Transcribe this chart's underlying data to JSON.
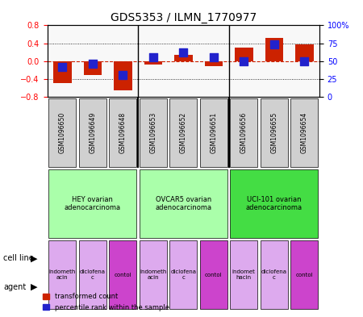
{
  "title": "GDS5353 / ILMN_1770977",
  "samples": [
    "GSM1096650",
    "GSM1096649",
    "GSM1096648",
    "GSM1096653",
    "GSM1096652",
    "GSM1096651",
    "GSM1096656",
    "GSM1096655",
    "GSM1096654"
  ],
  "transformed_counts": [
    -0.49,
    -0.32,
    -0.65,
    -0.08,
    0.13,
    -0.12,
    0.31,
    0.51,
    0.37
  ],
  "percentile_ranks": [
    42,
    46,
    30,
    55,
    62,
    55,
    50,
    73,
    50
  ],
  "ylim_left": [
    -0.8,
    0.8
  ],
  "ylim_right": [
    0,
    100
  ],
  "yticks_left": [
    -0.8,
    -0.4,
    0,
    0.4,
    0.8
  ],
  "yticks_right": [
    0,
    25,
    50,
    75,
    100
  ],
  "ytick_labels_right": [
    "0",
    "25",
    "50",
    "75",
    "100%"
  ],
  "cell_lines": [
    {
      "label": "HEY ovarian\nadenocarcinoma",
      "start": 0,
      "end": 3,
      "color": "#90EE90"
    },
    {
      "label": "OVCAR5 ovarian\nadenocarcinoma",
      "start": 3,
      "end": 6,
      "color": "#90EE90"
    },
    {
      "label": "UCI-101 ovarian\nadenocarcinoma",
      "start": 6,
      "end": 9,
      "color": "#00CC00"
    }
  ],
  "agents": [
    {
      "label": "indometh\nacin",
      "start": 0,
      "end": 1,
      "color": "#DD88DD"
    },
    {
      "label": "diclofena\nc",
      "start": 1,
      "end": 2,
      "color": "#DD88DD"
    },
    {
      "label": "contol",
      "start": 2,
      "end": 3,
      "color": "#EE66EE"
    },
    {
      "label": "indometh\nacin",
      "start": 3,
      "end": 4,
      "color": "#DD88DD"
    },
    {
      "label": "diclofena\nc",
      "start": 4,
      "end": 5,
      "color": "#DD88DD"
    },
    {
      "label": "contol",
      "start": 5,
      "end": 6,
      "color": "#EE66EE"
    },
    {
      "label": "indomet\nhacin",
      "start": 6,
      "end": 7,
      "color": "#DD88DD"
    },
    {
      "label": "diclofena\nc",
      "start": 7,
      "end": 8,
      "color": "#DD88DD"
    },
    {
      "label": "contol",
      "start": 8,
      "end": 9,
      "color": "#EE66EE"
    }
  ],
  "bar_color": "#CC2200",
  "dot_color": "#2222CC",
  "bar_width": 0.6,
  "dot_size": 60,
  "grid_color": "#000000",
  "zero_line_color": "#CC2200",
  "background_color": "#FFFFFF",
  "cell_line_separator_color": "#008800",
  "cell_line1_color": "#AAFFAA",
  "cell_line2_color": "#44DD44",
  "agent_color1": "#DD88EE",
  "agent_color2": "#CC55CC"
}
